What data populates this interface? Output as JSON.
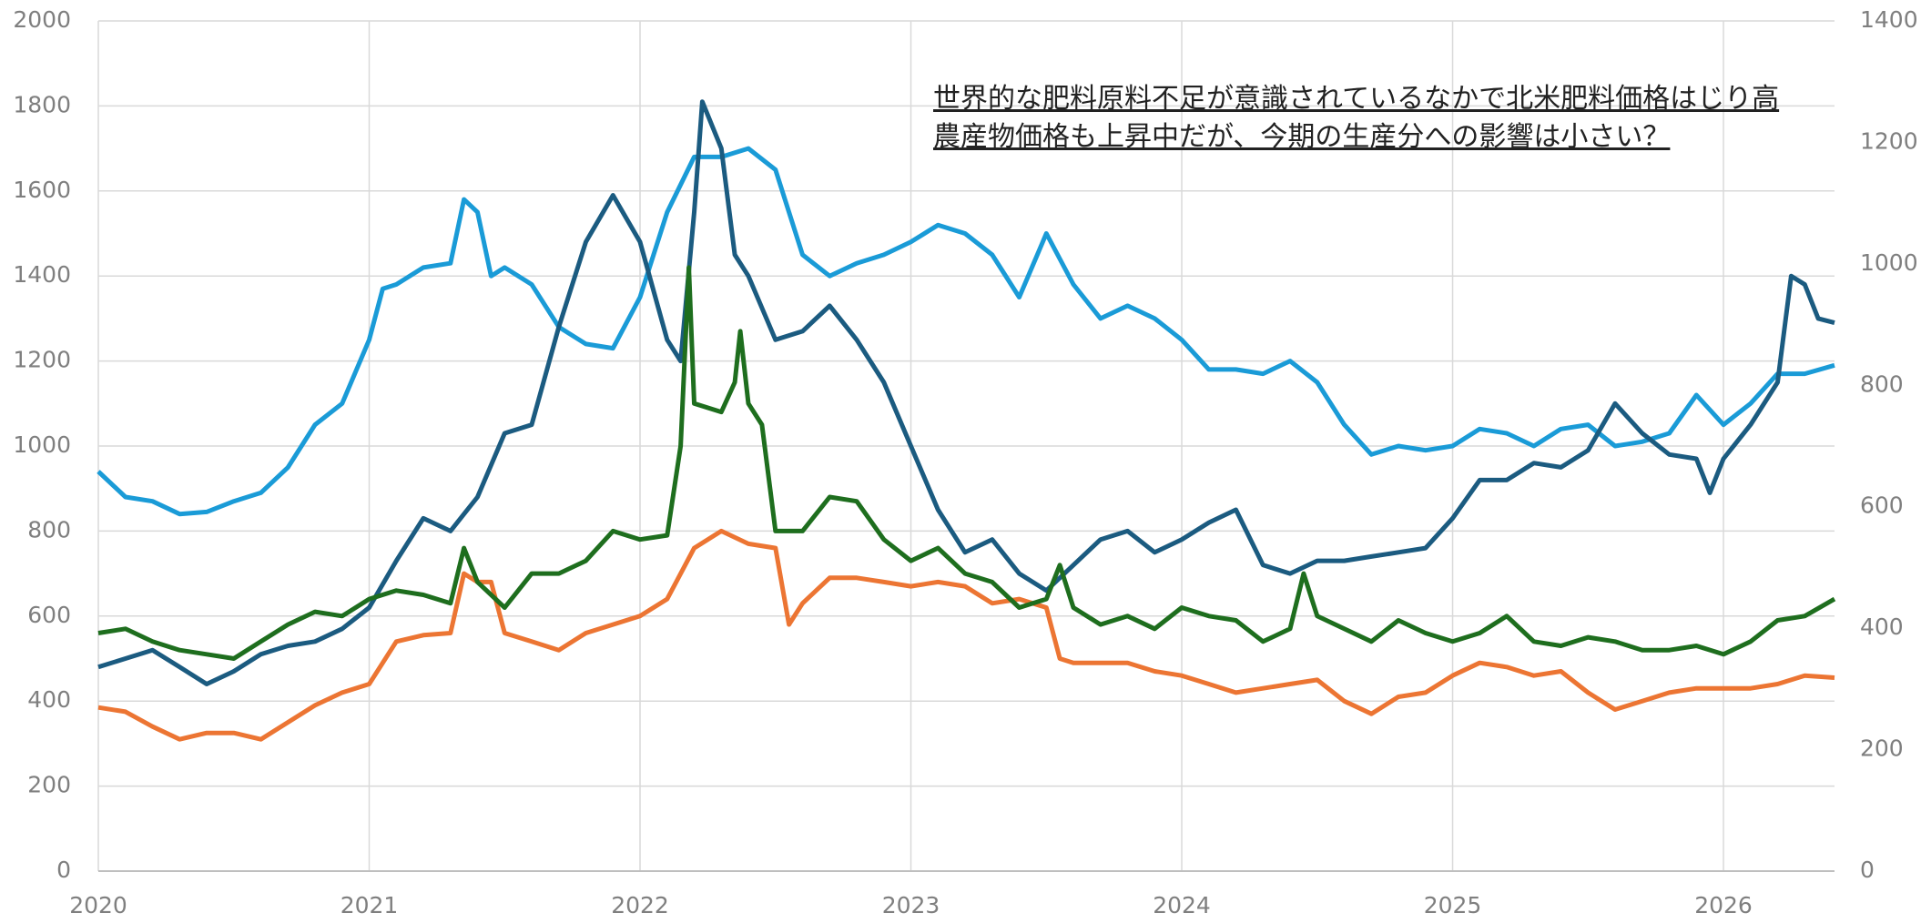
{
  "chart_data": {
    "type": "line",
    "annotation": [
      "世界的な肥料原料不足が意識されているなかで北米肥料価格はじり高",
      "農産物価格も上昇中だが、今期の生産分への影響は小さい？"
    ],
    "xlim": [
      2020,
      2026.41
    ],
    "xticks": [
      2020,
      2021,
      2022,
      2023,
      2024,
      2025,
      2026
    ],
    "ylim": [
      0,
      2000
    ],
    "yticks": [
      0,
      200,
      400,
      600,
      800,
      1000,
      1200,
      1400,
      1600,
      1800,
      2000
    ],
    "y2lim": [
      0,
      1400
    ],
    "y2ticks": [
      0,
      200,
      400,
      600,
      800,
      1000,
      1200,
      1400
    ],
    "grid": true,
    "series": [
      {
        "color": "#1a9bd7",
        "x": [
          2020,
          2020.1,
          2020.2,
          2020.3,
          2020.4,
          2020.5,
          2020.6,
          2020.7,
          2020.8,
          2020.9,
          2021,
          2021.05,
          2021.1,
          2021.2,
          2021.3,
          2021.35,
          2021.4,
          2021.45,
          2021.5,
          2021.6,
          2021.7,
          2021.8,
          2021.9,
          2022,
          2022.1,
          2022.2,
          2022.3,
          2022.4,
          2022.5,
          2022.6,
          2022.7,
          2022.8,
          2022.9,
          2023,
          2023.1,
          2023.2,
          2023.3,
          2023.4,
          2023.5,
          2023.6,
          2023.7,
          2023.8,
          2023.9,
          2024,
          2024.1,
          2024.2,
          2024.3,
          2024.4,
          2024.5,
          2024.6,
          2024.7,
          2024.8,
          2024.9,
          2025,
          2025.1,
          2025.2,
          2025.3,
          2025.4,
          2025.5,
          2025.6,
          2025.7,
          2025.8,
          2025.9,
          2026,
          2026.1,
          2026.2,
          2026.3,
          2026.41
        ],
        "values": [
          940,
          880,
          870,
          840,
          845,
          870,
          890,
          950,
          1050,
          1100,
          1250,
          1370,
          1380,
          1420,
          1430,
          1580,
          1550,
          1400,
          1420,
          1380,
          1280,
          1240,
          1230,
          1350,
          1550,
          1680,
          1680,
          1700,
          1650,
          1450,
          1400,
          1430,
          1450,
          1480,
          1520,
          1500,
          1450,
          1350,
          1500,
          1380,
          1300,
          1330,
          1300,
          1250,
          1180,
          1180,
          1170,
          1200,
          1150,
          1050,
          980,
          1000,
          990,
          1000,
          1040,
          1030,
          1000,
          1040,
          1050,
          1000,
          1010,
          1030,
          1120,
          1050,
          1100,
          1170,
          1170,
          1190
        ]
      },
      {
        "color": "#1b5b80",
        "axis": "y2",
        "x": [
          2020,
          2020.1,
          2020.2,
          2020.3,
          2020.4,
          2020.5,
          2020.6,
          2020.7,
          2020.8,
          2020.9,
          2021,
          2021.1,
          2021.2,
          2021.3,
          2021.4,
          2021.5,
          2021.6,
          2021.7,
          2021.8,
          2021.9,
          2022,
          2022.1,
          2022.15,
          2022.2,
          2022.23,
          2022.3,
          2022.35,
          2022.4,
          2022.5,
          2022.6,
          2022.7,
          2022.8,
          2022.9,
          2023,
          2023.1,
          2023.2,
          2023.3,
          2023.4,
          2023.5,
          2023.6,
          2023.7,
          2023.8,
          2023.9,
          2024,
          2024.1,
          2024.2,
          2024.3,
          2024.4,
          2024.5,
          2024.6,
          2024.7,
          2024.8,
          2024.9,
          2025,
          2025.1,
          2025.2,
          2025.3,
          2025.4,
          2025.5,
          2025.6,
          2025.7,
          2025.8,
          2025.9,
          2025.95,
          2026,
          2026.1,
          2026.2,
          2026.25,
          2026.3,
          2026.35,
          2026.41
        ],
        "values": [
          336,
          350,
          364,
          336,
          308,
          329,
          357,
          371,
          378,
          399,
          434,
          511,
          581,
          560,
          616,
          721,
          735,
          896,
          1036,
          1113,
          1036,
          875,
          840,
          1085,
          1267,
          1190,
          1015,
          980,
          875,
          889,
          931,
          875,
          805,
          700,
          595,
          525,
          546,
          490,
          462,
          504,
          546,
          560,
          525,
          546,
          574,
          595,
          504,
          490,
          511,
          511,
          518,
          525,
          532,
          581,
          644,
          644,
          672,
          665,
          693,
          770,
          721,
          686,
          679,
          623,
          679,
          735,
          805,
          980,
          966,
          910,
          903
        ]
      },
      {
        "color": "#ec7533",
        "x": [
          2020,
          2020.1,
          2020.2,
          2020.3,
          2020.4,
          2020.5,
          2020.6,
          2020.7,
          2020.8,
          2020.9,
          2021,
          2021.1,
          2021.2,
          2021.3,
          2021.35,
          2021.4,
          2021.45,
          2021.5,
          2021.6,
          2021.7,
          2021.8,
          2021.9,
          2022,
          2022.1,
          2022.2,
          2022.3,
          2022.4,
          2022.5,
          2022.55,
          2022.6,
          2022.7,
          2022.8,
          2022.9,
          2023,
          2023.1,
          2023.2,
          2023.3,
          2023.4,
          2023.5,
          2023.55,
          2023.6,
          2023.7,
          2023.8,
          2023.9,
          2024,
          2024.1,
          2024.2,
          2024.3,
          2024.4,
          2024.5,
          2024.6,
          2024.7,
          2024.8,
          2024.9,
          2025,
          2025.1,
          2025.2,
          2025.3,
          2025.4,
          2025.5,
          2025.6,
          2025.7,
          2025.8,
          2025.9,
          2026,
          2026.1,
          2026.2,
          2026.3,
          2026.41
        ],
        "values": [
          385,
          375,
          340,
          310,
          325,
          325,
          310,
          350,
          390,
          420,
          440,
          540,
          555,
          560,
          700,
          680,
          680,
          560,
          540,
          520,
          560,
          580,
          600,
          640,
          760,
          800,
          770,
          760,
          580,
          630,
          690,
          690,
          680,
          670,
          680,
          670,
          630,
          640,
          620,
          500,
          490,
          490,
          490,
          470,
          460,
          440,
          420,
          430,
          440,
          450,
          400,
          370,
          410,
          420,
          460,
          490,
          480,
          460,
          470,
          420,
          380,
          400,
          420,
          430,
          430,
          430,
          440,
          460,
          455
        ]
      },
      {
        "color": "#1e6e1e",
        "x": [
          2020,
          2020.1,
          2020.2,
          2020.3,
          2020.4,
          2020.5,
          2020.6,
          2020.7,
          2020.8,
          2020.9,
          2021,
          2021.1,
          2021.2,
          2021.3,
          2021.35,
          2021.4,
          2021.5,
          2021.6,
          2021.7,
          2021.8,
          2021.9,
          2022,
          2022.1,
          2022.15,
          2022.18,
          2022.2,
          2022.3,
          2022.35,
          2022.37,
          2022.4,
          2022.45,
          2022.5,
          2022.6,
          2022.7,
          2022.8,
          2022.9,
          2023,
          2023.1,
          2023.2,
          2023.3,
          2023.4,
          2023.5,
          2023.55,
          2023.6,
          2023.7,
          2023.8,
          2023.9,
          2024,
          2024.1,
          2024.2,
          2024.3,
          2024.4,
          2024.45,
          2024.5,
          2024.6,
          2024.7,
          2024.8,
          2024.9,
          2025,
          2025.1,
          2025.2,
          2025.3,
          2025.4,
          2025.5,
          2025.6,
          2025.7,
          2025.8,
          2025.9,
          2026,
          2026.1,
          2026.2,
          2026.3,
          2026.41
        ],
        "values": [
          560,
          570,
          540,
          520,
          510,
          500,
          540,
          580,
          610,
          600,
          640,
          660,
          650,
          630,
          760,
          680,
          620,
          700,
          700,
          730,
          800,
          780,
          790,
          1000,
          1420,
          1100,
          1080,
          1150,
          1270,
          1100,
          1050,
          800,
          800,
          880,
          870,
          780,
          730,
          760,
          700,
          680,
          620,
          640,
          720,
          620,
          580,
          600,
          570,
          620,
          600,
          590,
          540,
          570,
          700,
          600,
          570,
          540,
          590,
          560,
          540,
          560,
          600,
          540,
          530,
          550,
          540,
          520,
          520,
          530,
          510,
          540,
          590,
          600,
          640
        ]
      }
    ]
  }
}
